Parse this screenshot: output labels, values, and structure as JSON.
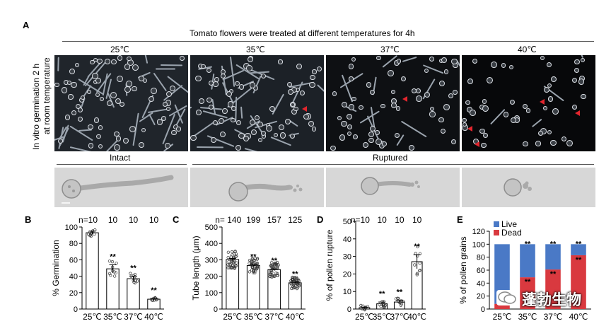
{
  "panel_a": {
    "letter": "A",
    "header": "Tomato flowers were treated at different temperatures for 4h",
    "row_label_line1": "In vitro germination 2 h",
    "row_label_line2": "at room temperature",
    "temps": [
      "25℃",
      "35℃",
      "37℃",
      "40℃"
    ],
    "intact_label": "Intact",
    "ruptured_label": "Ruptured"
  },
  "chart_data": [
    {
      "panel": "B",
      "type": "bar",
      "ylabel": "% Germination",
      "categories": [
        "25℃",
        "35℃",
        "37℃",
        "40℃"
      ],
      "values": [
        93,
        49,
        37,
        12
      ],
      "errors": [
        2,
        5,
        3,
        1
      ],
      "ylim": [
        0,
        100
      ],
      "yticks": [
        0,
        20,
        40,
        60,
        80,
        100
      ],
      "n_labels": [
        "n=10",
        "10",
        "10",
        "10"
      ],
      "significance": [
        "",
        "**",
        "**",
        "**"
      ]
    },
    {
      "panel": "C",
      "type": "bar",
      "ylabel": "Tube length (μm)",
      "categories": [
        "25℃",
        "35℃",
        "37℃",
        "40℃"
      ],
      "values": [
        302,
        265,
        240,
        160
      ],
      "errors": [
        6,
        5,
        5,
        4
      ],
      "ylim": [
        0,
        500
      ],
      "yticks": [
        0,
        100,
        200,
        300,
        400,
        500
      ],
      "n_labels": [
        "n= 140",
        "199",
        "157",
        "125"
      ],
      "significance": [
        "",
        "**",
        "**",
        "**"
      ]
    },
    {
      "panel": "D",
      "type": "bar",
      "ylabel": "% of pollen rupture",
      "categories": [
        "25℃",
        "35℃",
        "37℃",
        "40℃"
      ],
      "values": [
        0.8,
        3,
        4,
        27
      ],
      "errors": [
        0.3,
        1,
        1,
        4
      ],
      "ylim": [
        0,
        50
      ],
      "yticks": [
        0,
        10,
        20,
        30,
        40,
        50
      ],
      "n_labels": [
        "n=10",
        "10",
        "10",
        "10"
      ],
      "significance": [
        "",
        "**",
        "**",
        "**"
      ]
    },
    {
      "panel": "E",
      "type": "bar",
      "stacked": true,
      "ylabel": "% of pollen grains",
      "categories": [
        "25℃",
        "35℃",
        "37℃",
        "40℃"
      ],
      "series": [
        {
          "name": "Dead",
          "values": [
            8,
            49,
            61,
            83
          ],
          "color": "#d9393f"
        },
        {
          "name": "Live",
          "values": [
            92,
            51,
            39,
            17
          ],
          "color": "#4a79c6"
        }
      ],
      "ylim": [
        0,
        120
      ],
      "yticks": [
        0,
        20,
        40,
        60,
        80,
        100,
        120
      ],
      "legend": [
        "Live",
        "Dead"
      ],
      "legend_placement": "top-left",
      "significance_top": [
        "",
        "**",
        "**",
        "**"
      ],
      "significance_inner": [
        "",
        "**",
        "**",
        "**"
      ]
    }
  ],
  "watermark": "蓬勃生物"
}
